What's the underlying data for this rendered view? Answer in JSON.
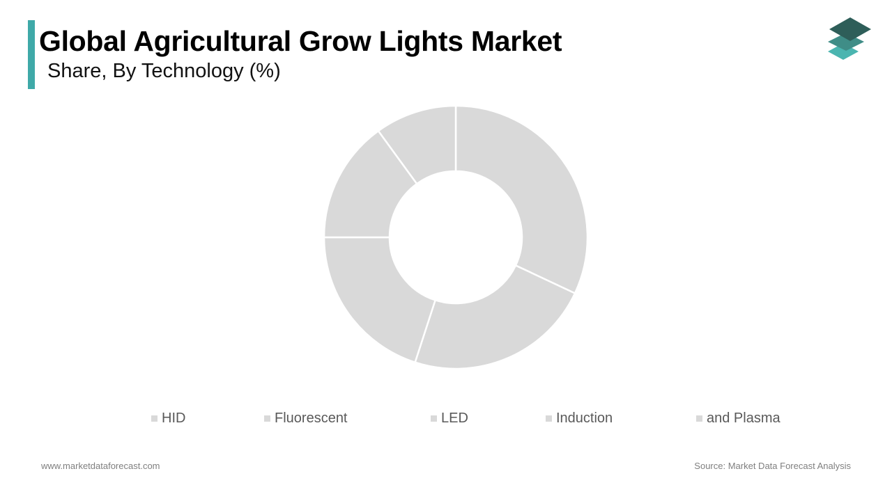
{
  "header": {
    "title": "Global Agricultural Grow Lights Market",
    "subtitle": "Share, By Technology (%)"
  },
  "colors": {
    "accent": "#3fa9a8",
    "slice_fill": "#d9d9d9",
    "slice_stroke": "#ffffff",
    "legend_text": "#595959",
    "logo_dark": "#2e5e59",
    "logo_mid": "#3f8d87",
    "logo_light": "#4bb5b0"
  },
  "logo": {
    "icon": "stacked-layers-icon"
  },
  "chart_data": {
    "type": "pie",
    "donut": true,
    "title": "Share, By Technology (%)",
    "categories": [
      "HID",
      "Fluorescent",
      "LED",
      "Induction",
      "and Plasma"
    ],
    "values": [
      32,
      23,
      20,
      15,
      10
    ],
    "unit": "%",
    "start_angle_deg": 0,
    "direction": "clockwise",
    "data_labels": false,
    "legend_placement": "bottom"
  },
  "footer": {
    "website": "www.marketdataforecast.com",
    "source": "Source: Market Data Forecast Analysis"
  }
}
